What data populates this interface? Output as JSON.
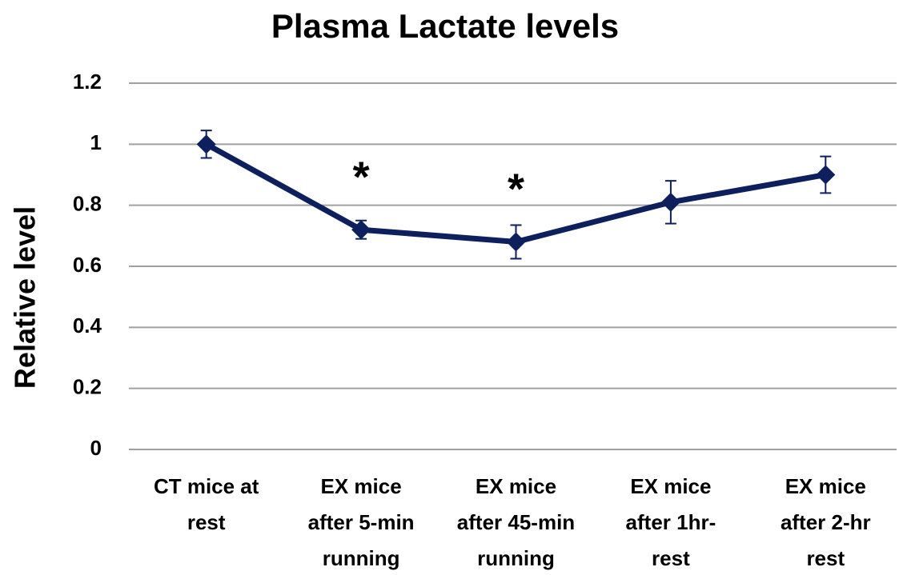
{
  "chart_data": {
    "type": "line",
    "title": "Plasma Lactate levels",
    "y_label": "Relative level",
    "categories": [
      [
        "CT mice at",
        "rest"
      ],
      [
        "EX mice",
        "after 5-min",
        "running"
      ],
      [
        "EX mice",
        "after 45-min",
        "running"
      ],
      [
        "EX mice",
        "after 1hr-",
        "rest"
      ],
      [
        "EX mice",
        "after 2-hr",
        "rest"
      ]
    ],
    "series": [
      {
        "name": "Plasma lactate",
        "color": "#0d1f5c",
        "values": [
          1.0,
          0.72,
          0.68,
          0.81,
          0.9
        ],
        "errors": [
          0.045,
          0.03,
          0.055,
          0.07,
          0.06
        ]
      }
    ],
    "annotations": [
      {
        "text": "*",
        "category": 1
      },
      {
        "text": "*",
        "category": 2
      }
    ],
    "ylim": [
      0,
      1.2
    ],
    "yticks": [
      0,
      {
        "value": 0.2,
        "label": "0.2"
      },
      {
        "value": 0.4,
        "label": "0.4"
      },
      {
        "value": 0.6,
        "label": "0.6"
      },
      {
        "value": 0.8,
        "label": "0.8"
      },
      1,
      {
        "value": 1.2,
        "label": "1.2"
      }
    ],
    "grid": true
  }
}
